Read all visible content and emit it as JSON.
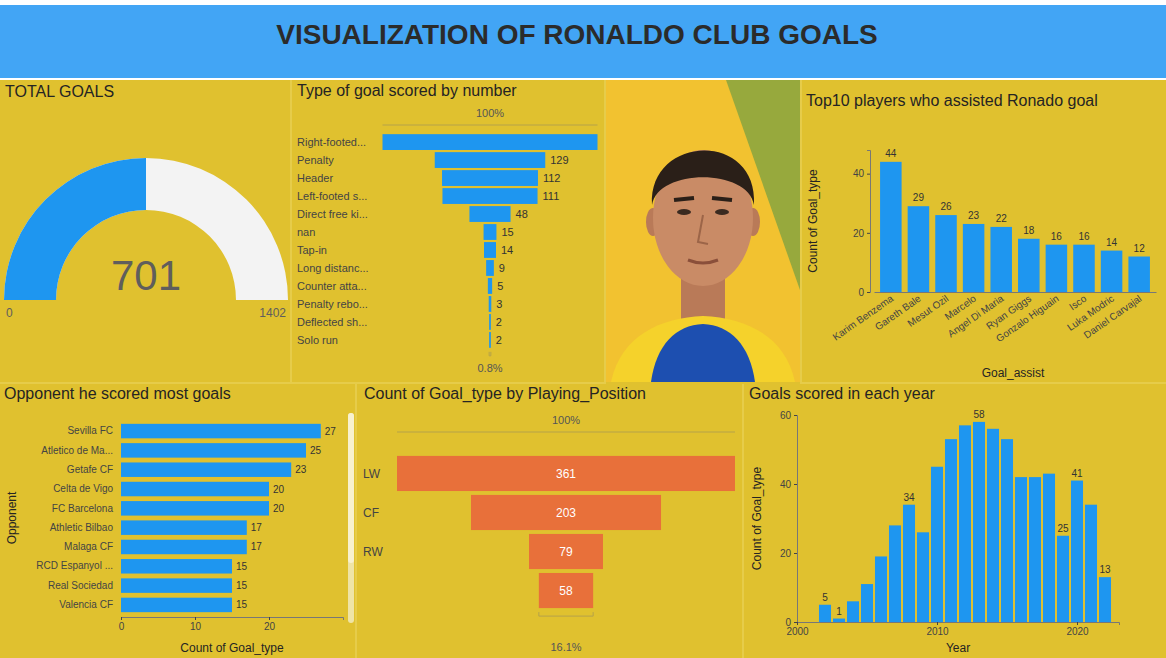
{
  "title": "VISUALIZATION OF RONALDO CLUB GOALS",
  "chart_data": [
    {
      "type": "gauge",
      "title": "TOTAL GOALS",
      "values": [
        701
      ],
      "ylim": [
        0,
        1402
      ],
      "yticks": [
        0,
        1402
      ],
      "color": "#1e96f0",
      "data_labels": true
    },
    {
      "type": "funnel",
      "title": "Type of goal scored by number",
      "categories": [
        "Right-footed...",
        "Penalty",
        "Header",
        "Left-footed s...",
        "Direct free ki...",
        "nan",
        "Tap-in",
        "Long distanc...",
        "Counter atta...",
        "Penalty rebo...",
        "Deflected sh...",
        "Solo run"
      ],
      "values": [
        251,
        129,
        112,
        111,
        48,
        15,
        14,
        9,
        5,
        3,
        2,
        2
      ],
      "value_labels": [
        null,
        "129",
        "112",
        "111",
        "48",
        "15",
        "14",
        "9",
        "5",
        "3",
        "2",
        "2"
      ],
      "annotations": [
        "100%",
        "0.8%"
      ],
      "color": "#1e96f0",
      "data_labels": true
    },
    {
      "type": "bar",
      "title": "Top10 players who assisted Ronado goal",
      "categories": [
        "Karim Benzema",
        "Gareth Bale",
        "Mesut Ozil",
        "Marcelo",
        "Angel Di Maria",
        "Ryan Giggs",
        "Gonzalo Higuain",
        "Isco",
        "Luka Modric",
        "Daniel Carvajal"
      ],
      "values": [
        44,
        29,
        26,
        23,
        22,
        18,
        16,
        16,
        14,
        12
      ],
      "ylim": [
        0,
        48
      ],
      "yticks": [
        0,
        20,
        40
      ],
      "x_label": "Goal_assist",
      "y_label": "Count of Goal_type",
      "color": "#1e96f0",
      "data_labels": true
    },
    {
      "type": "bar",
      "orientation": "horizontal",
      "title": "Opponent he scored most goals",
      "categories": [
        "Sevilla FC",
        "Atletico de Ma...",
        "Getafe CF",
        "Celta de Vigo",
        "FC Barcelona",
        "Athletic Bilbao",
        "Malaga CF",
        "RCD Espanyol ...",
        "Real Sociedad",
        "Valencia CF"
      ],
      "values": [
        27,
        25,
        23,
        20,
        20,
        17,
        17,
        15,
        15,
        15
      ],
      "xlim": [
        0,
        30
      ],
      "xticks": [
        0,
        10,
        20
      ],
      "x_label": "Count of Goal_type",
      "y_label": "Opponent",
      "color": "#1e96f0",
      "data_labels": true
    },
    {
      "type": "funnel",
      "title": "Count of Goal_type by Playing_Position",
      "categories": [
        "LW",
        "CF",
        "RW",
        null
      ],
      "values": [
        361,
        203,
        79,
        58
      ],
      "annotations": [
        "100%",
        "16.1%"
      ],
      "color": "#e8703a",
      "data_labels": true
    },
    {
      "type": "bar",
      "title": "Goals scored in each year",
      "x": [
        2002,
        2003,
        2004,
        2005,
        2006,
        2007,
        2008,
        2009,
        2010,
        2011,
        2012,
        2013,
        2014,
        2015,
        2016,
        2017,
        2018,
        2019,
        2020,
        2021,
        2022
      ],
      "values": [
        5,
        1,
        6,
        11,
        19,
        28,
        34,
        26,
        45,
        53,
        57,
        58,
        56,
        53,
        42,
        42,
        43,
        25,
        41,
        34,
        13
      ],
      "value_labels": [
        "5",
        "1",
        null,
        null,
        null,
        null,
        "34",
        null,
        null,
        null,
        null,
        "58",
        null,
        null,
        null,
        null,
        null,
        "25",
        "41",
        null,
        "13"
      ],
      "xlim": [
        2000,
        2023
      ],
      "xticks": [
        2000,
        2010,
        2020
      ],
      "ylim": [
        0,
        60
      ],
      "yticks": [
        0,
        20,
        40,
        60
      ],
      "x_label": "Year",
      "y_label": "Count of Goal_type",
      "color": "#1e96f0",
      "data_labels": true
    }
  ]
}
